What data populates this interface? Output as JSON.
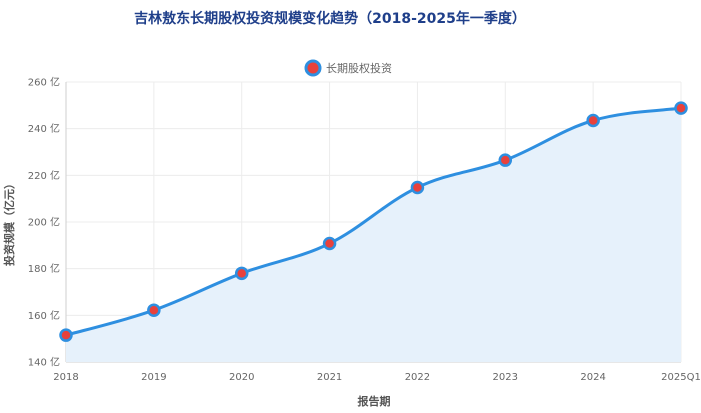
{
  "chart_data": {
    "type": "area",
    "title": "吉林敖东长期股权投资规模变化趋势（2018-2025年一季度）",
    "xlabel": "报告期",
    "ylabel": "投资规模（亿元）",
    "categories": [
      "2018",
      "2019",
      "2020",
      "2021",
      "2022",
      "2023",
      "2024",
      "2025Q1"
    ],
    "series": [
      {
        "name": "长期股权投资",
        "values": [
          151.5,
          162.2,
          178.0,
          190.8,
          214.8,
          226.5,
          243.5,
          248.8
        ]
      }
    ],
    "ylim": [
      140,
      260
    ],
    "yticks": [
      "140 亿",
      "160 亿",
      "180 亿",
      "200 亿",
      "220 亿",
      "240 亿",
      "260 亿"
    ],
    "grid": true,
    "legend_position": "top",
    "colors": {
      "line": "#2e8fe0",
      "fill": "#e6f1fb",
      "marker_fill": "#e8413c",
      "marker_stroke": "#2e8fe0",
      "title": "#1f3f8a"
    }
  }
}
